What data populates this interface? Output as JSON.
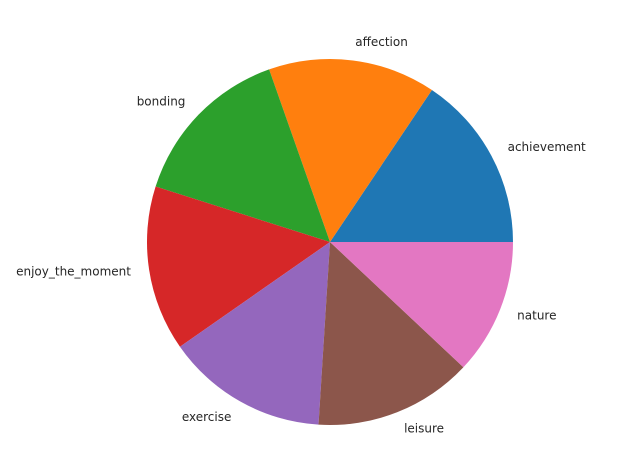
{
  "chart_data": {
    "type": "pie",
    "title": "",
    "start_angle_deg": 0,
    "direction": "counterclockwise",
    "slices": [
      {
        "label": "achievement",
        "value": 15.6,
        "color": "#1f77b4"
      },
      {
        "label": "affection",
        "value": 14.8,
        "color": "#ff7f0e"
      },
      {
        "label": "bonding",
        "value": 14.7,
        "color": "#2ca02c"
      },
      {
        "label": "enjoy_the_moment",
        "value": 14.6,
        "color": "#d62728"
      },
      {
        "label": "exercise",
        "value": 14.3,
        "color": "#9467bd"
      },
      {
        "label": "leisure",
        "value": 14.0,
        "color": "#8c564b"
      },
      {
        "label": "nature",
        "value": 12.0,
        "color": "#e377c2"
      }
    ]
  }
}
